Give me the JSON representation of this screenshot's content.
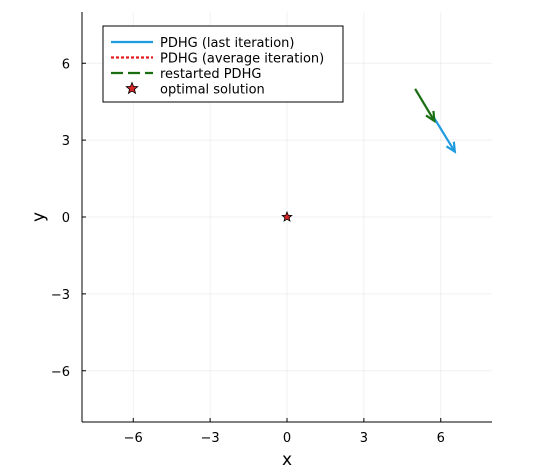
{
  "chart_data": {
    "type": "line",
    "title": "",
    "xlabel": "x",
    "ylabel": "y",
    "xlim": [
      -8,
      8
    ],
    "ylim": [
      -8,
      8
    ],
    "xticks": [
      -6,
      -3,
      0,
      3,
      6
    ],
    "yticks": [
      -6,
      -3,
      0,
      3,
      6
    ],
    "xtick_labels": [
      "−6",
      "−3",
      "0",
      "3",
      "6"
    ],
    "ytick_labels": [
      "−6",
      "−3",
      "0",
      "3",
      "6"
    ],
    "grid": true,
    "legend_position": "top-left",
    "series": [
      {
        "name": "PDHG (last iteration)",
        "style": "solid",
        "color": "#1f9be0",
        "x": [
          5.75,
          6.55
        ],
        "y": [
          3.85,
          2.55
        ],
        "arrow": true
      },
      {
        "name": "PDHG (average iteration)",
        "style": "dotted",
        "color": "#e31a1c",
        "x": [],
        "y": []
      },
      {
        "name": "restarted PDHG",
        "style": "dashed",
        "color": "#1a6e12",
        "x": [
          5.0,
          5.75
        ],
        "y": [
          5.0,
          3.75
        ],
        "arrow": true
      },
      {
        "name": "optimal solution",
        "style": "marker-star",
        "color": "#d62728",
        "x": [
          0
        ],
        "y": [
          0
        ]
      }
    ]
  }
}
